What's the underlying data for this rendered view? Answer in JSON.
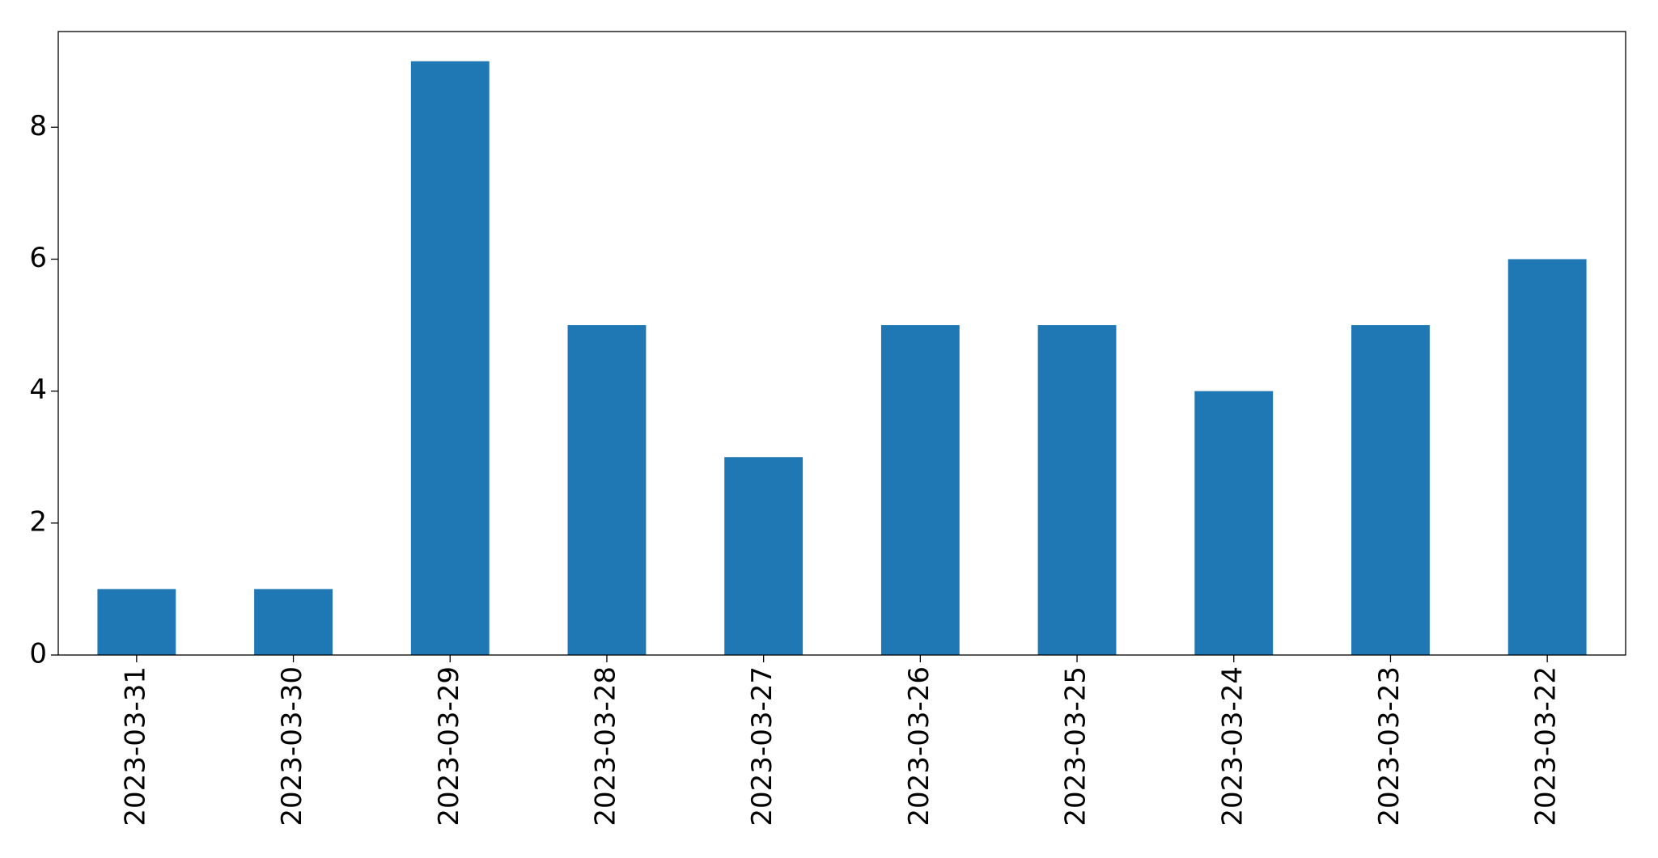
{
  "chart_data": {
    "type": "bar",
    "categories": [
      "2023-03-31",
      "2023-03-30",
      "2023-03-29",
      "2023-03-28",
      "2023-03-27",
      "2023-03-26",
      "2023-03-25",
      "2023-03-24",
      "2023-03-23",
      "2023-03-22"
    ],
    "values": [
      1,
      1,
      9,
      5,
      3,
      5,
      5,
      4,
      5,
      6
    ],
    "color": "#1f77b4",
    "ylim": [
      0,
      9.45
    ],
    "yticks": [
      0,
      2,
      4,
      6,
      8
    ],
    "grid": false
  }
}
